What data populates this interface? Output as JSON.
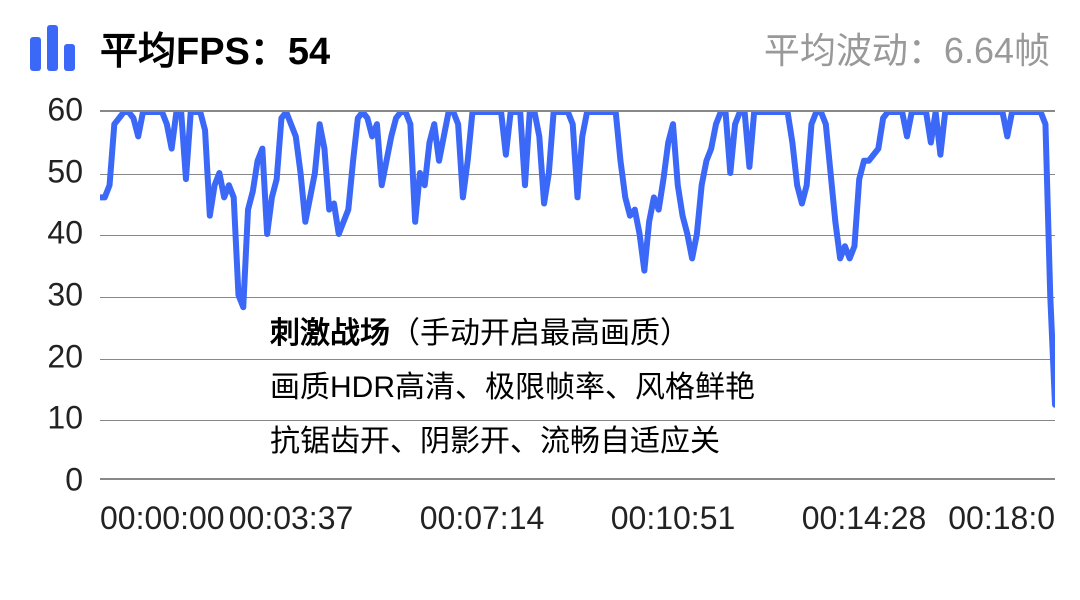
{
  "header": {
    "avg_fps_label": "平均FPS：",
    "avg_fps_value": "54",
    "fluctuation_label": "平均波动：",
    "fluctuation_value": "6.64帧",
    "icon_bars": [
      {
        "h": 34,
        "color": "#3b68f7"
      },
      {
        "h": 46,
        "color": "#3b68f7"
      },
      {
        "h": 27,
        "color": "#3b68f7"
      }
    ]
  },
  "chart": {
    "type": "line",
    "line_color": "#3b68f7",
    "line_width": 6,
    "grid_color": "#888888",
    "background": "#ffffff",
    "ylim": [
      0,
      60
    ],
    "y_ticks": [
      0,
      10,
      20,
      30,
      40,
      50,
      60
    ],
    "x_ticks": [
      {
        "pos": 0.0,
        "label": "00:00:00"
      },
      {
        "pos": 0.2,
        "label": "00:03:37"
      },
      {
        "pos": 0.4,
        "label": "00:07:14"
      },
      {
        "pos": 0.6,
        "label": "00:10:51"
      },
      {
        "pos": 0.8,
        "label": "00:14:28"
      },
      {
        "pos": 1.0,
        "label": "00:18:0"
      }
    ],
    "data": [
      [
        0.0,
        46
      ],
      [
        0.005,
        46
      ],
      [
        0.01,
        48
      ],
      [
        0.015,
        58
      ],
      [
        0.02,
        59
      ],
      [
        0.025,
        60
      ],
      [
        0.03,
        60
      ],
      [
        0.035,
        59
      ],
      [
        0.04,
        56
      ],
      [
        0.045,
        60
      ],
      [
        0.05,
        60
      ],
      [
        0.055,
        60
      ],
      [
        0.06,
        60
      ],
      [
        0.065,
        60
      ],
      [
        0.07,
        58
      ],
      [
        0.075,
        54
      ],
      [
        0.08,
        60
      ],
      [
        0.085,
        60
      ],
      [
        0.09,
        49
      ],
      [
        0.095,
        60
      ],
      [
        0.1,
        60
      ],
      [
        0.105,
        60
      ],
      [
        0.11,
        57
      ],
      [
        0.115,
        43
      ],
      [
        0.12,
        48
      ],
      [
        0.125,
        50
      ],
      [
        0.13,
        46
      ],
      [
        0.135,
        48
      ],
      [
        0.14,
        46
      ],
      [
        0.145,
        30
      ],
      [
        0.15,
        28
      ],
      [
        0.155,
        44
      ],
      [
        0.16,
        47
      ],
      [
        0.165,
        52
      ],
      [
        0.17,
        54
      ],
      [
        0.175,
        40
      ],
      [
        0.18,
        46
      ],
      [
        0.185,
        49
      ],
      [
        0.19,
        59
      ],
      [
        0.195,
        60
      ],
      [
        0.2,
        58
      ],
      [
        0.205,
        56
      ],
      [
        0.21,
        50
      ],
      [
        0.215,
        42
      ],
      [
        0.22,
        46
      ],
      [
        0.225,
        50
      ],
      [
        0.23,
        58
      ],
      [
        0.235,
        54
      ],
      [
        0.24,
        44
      ],
      [
        0.245,
        45
      ],
      [
        0.25,
        40
      ],
      [
        0.255,
        42
      ],
      [
        0.26,
        44
      ],
      [
        0.265,
        52
      ],
      [
        0.27,
        59
      ],
      [
        0.275,
        60
      ],
      [
        0.28,
        59
      ],
      [
        0.285,
        56
      ],
      [
        0.29,
        58
      ],
      [
        0.295,
        48
      ],
      [
        0.3,
        52
      ],
      [
        0.305,
        56
      ],
      [
        0.31,
        59
      ],
      [
        0.315,
        60
      ],
      [
        0.32,
        60
      ],
      [
        0.325,
        58
      ],
      [
        0.33,
        42
      ],
      [
        0.335,
        50
      ],
      [
        0.34,
        48
      ],
      [
        0.345,
        55
      ],
      [
        0.35,
        58
      ],
      [
        0.355,
        52
      ],
      [
        0.36,
        56
      ],
      [
        0.365,
        60
      ],
      [
        0.37,
        60
      ],
      [
        0.375,
        58
      ],
      [
        0.38,
        46
      ],
      [
        0.385,
        52
      ],
      [
        0.39,
        60
      ],
      [
        0.395,
        60
      ],
      [
        0.4,
        60
      ],
      [
        0.405,
        60
      ],
      [
        0.41,
        60
      ],
      [
        0.415,
        60
      ],
      [
        0.42,
        60
      ],
      [
        0.425,
        53
      ],
      [
        0.43,
        60
      ],
      [
        0.435,
        60
      ],
      [
        0.44,
        60
      ],
      [
        0.445,
        48
      ],
      [
        0.45,
        60
      ],
      [
        0.455,
        60
      ],
      [
        0.46,
        56
      ],
      [
        0.465,
        45
      ],
      [
        0.47,
        50
      ],
      [
        0.475,
        60
      ],
      [
        0.48,
        60
      ],
      [
        0.485,
        60
      ],
      [
        0.49,
        60
      ],
      [
        0.495,
        58
      ],
      [
        0.5,
        46
      ],
      [
        0.505,
        56
      ],
      [
        0.51,
        60
      ],
      [
        0.515,
        60
      ],
      [
        0.52,
        60
      ],
      [
        0.525,
        60
      ],
      [
        0.53,
        60
      ],
      [
        0.535,
        60
      ],
      [
        0.54,
        60
      ],
      [
        0.545,
        52
      ],
      [
        0.55,
        46
      ],
      [
        0.555,
        43
      ],
      [
        0.56,
        44
      ],
      [
        0.565,
        40
      ],
      [
        0.57,
        34
      ],
      [
        0.575,
        42
      ],
      [
        0.58,
        46
      ],
      [
        0.585,
        44
      ],
      [
        0.59,
        49
      ],
      [
        0.595,
        55
      ],
      [
        0.6,
        58
      ],
      [
        0.605,
        48
      ],
      [
        0.61,
        43
      ],
      [
        0.615,
        40
      ],
      [
        0.62,
        36
      ],
      [
        0.625,
        40
      ],
      [
        0.63,
        48
      ],
      [
        0.635,
        52
      ],
      [
        0.64,
        54
      ],
      [
        0.645,
        58
      ],
      [
        0.65,
        60
      ],
      [
        0.655,
        60
      ],
      [
        0.66,
        50
      ],
      [
        0.665,
        58
      ],
      [
        0.67,
        60
      ],
      [
        0.675,
        60
      ],
      [
        0.68,
        51
      ],
      [
        0.685,
        60
      ],
      [
        0.69,
        60
      ],
      [
        0.695,
        60
      ],
      [
        0.7,
        60
      ],
      [
        0.705,
        60
      ],
      [
        0.71,
        60
      ],
      [
        0.715,
        60
      ],
      [
        0.72,
        60
      ],
      [
        0.725,
        55
      ],
      [
        0.73,
        48
      ],
      [
        0.735,
        45
      ],
      [
        0.74,
        48
      ],
      [
        0.745,
        58
      ],
      [
        0.75,
        60
      ],
      [
        0.755,
        60
      ],
      [
        0.76,
        58
      ],
      [
        0.765,
        50
      ],
      [
        0.77,
        42
      ],
      [
        0.775,
        36
      ],
      [
        0.78,
        38
      ],
      [
        0.785,
        36
      ],
      [
        0.79,
        38
      ],
      [
        0.795,
        49
      ],
      [
        0.8,
        52
      ],
      [
        0.805,
        52
      ],
      [
        0.81,
        53
      ],
      [
        0.815,
        54
      ],
      [
        0.82,
        59
      ],
      [
        0.825,
        60
      ],
      [
        0.83,
        60
      ],
      [
        0.835,
        60
      ],
      [
        0.84,
        60
      ],
      [
        0.845,
        56
      ],
      [
        0.85,
        60
      ],
      [
        0.855,
        60
      ],
      [
        0.86,
        60
      ],
      [
        0.865,
        60
      ],
      [
        0.87,
        55
      ],
      [
        0.875,
        60
      ],
      [
        0.88,
        53
      ],
      [
        0.885,
        60
      ],
      [
        0.89,
        60
      ],
      [
        0.895,
        60
      ],
      [
        0.9,
        60
      ],
      [
        0.905,
        60
      ],
      [
        0.91,
        60
      ],
      [
        0.915,
        60
      ],
      [
        0.92,
        60
      ],
      [
        0.925,
        60
      ],
      [
        0.93,
        60
      ],
      [
        0.935,
        60
      ],
      [
        0.94,
        60
      ],
      [
        0.945,
        60
      ],
      [
        0.95,
        56
      ],
      [
        0.955,
        60
      ],
      [
        0.96,
        60
      ],
      [
        0.965,
        60
      ],
      [
        0.97,
        60
      ],
      [
        0.975,
        60
      ],
      [
        0.98,
        60
      ],
      [
        0.985,
        60
      ],
      [
        0.99,
        58
      ],
      [
        0.995,
        30
      ],
      [
        1.0,
        12
      ]
    ],
    "overlay": {
      "title_bold": "刺激战场",
      "title_rest": "（手动开启最高画质）",
      "line2": "画质HDR高清、极限帧率、风格鲜艳",
      "line3": "抗锯齿开、阴影开、流畅自适应关"
    }
  }
}
